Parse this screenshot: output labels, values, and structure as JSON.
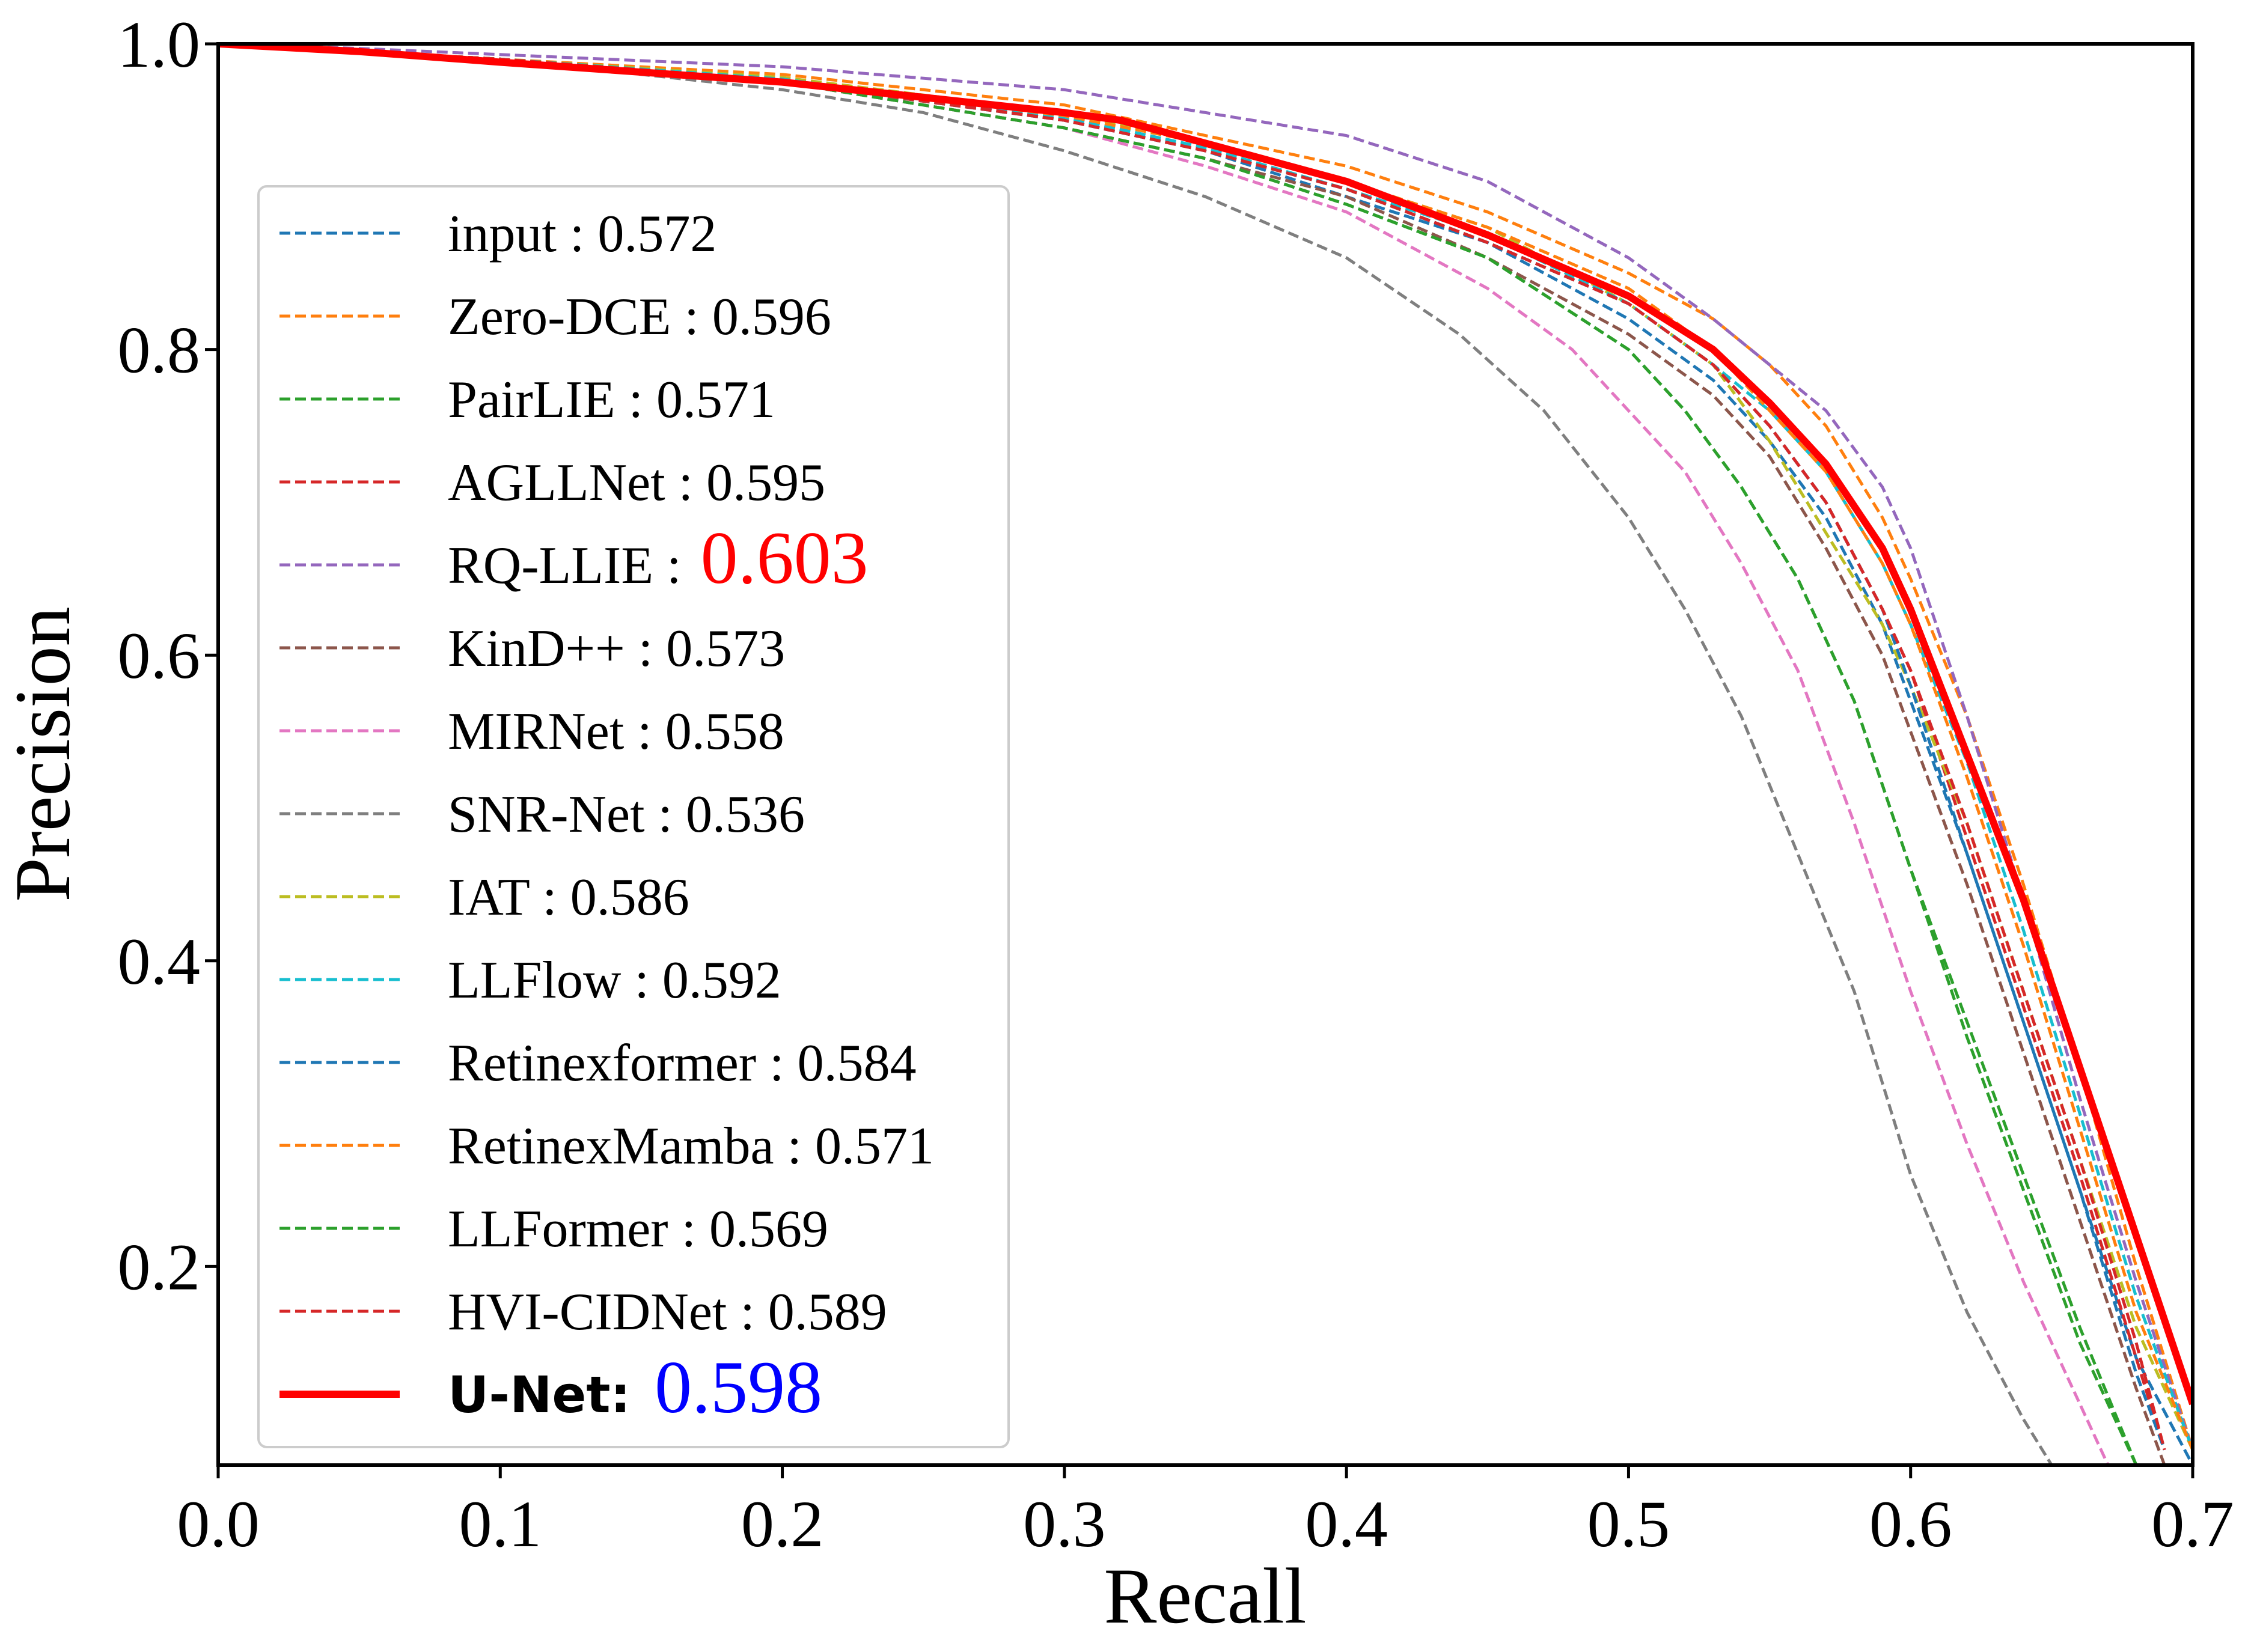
{
  "chart_data": {
    "type": "line",
    "title": "",
    "xlabel": "Recall",
    "ylabel": "Precision",
    "xlim": [
      0.0,
      0.7
    ],
    "ylim": [
      0.07,
      1.0
    ],
    "xticks": [
      "0.0",
      "0.1",
      "0.2",
      "0.3",
      "0.4",
      "0.5",
      "0.6",
      "0.7"
    ],
    "yticks": [
      "0.2",
      "0.4",
      "0.6",
      "0.8",
      "1.0"
    ],
    "grid": false,
    "legend_position": "center-left",
    "series": [
      {
        "name": "input",
        "score": "0.572",
        "color": "#1f77b4",
        "style": "dashed",
        "x": [
          0,
          0.05,
          0.1,
          0.2,
          0.3,
          0.35,
          0.4,
          0.45,
          0.5,
          0.53,
          0.55,
          0.57,
          0.59,
          0.6,
          0.62,
          0.64,
          0.66,
          0.68,
          0.7
        ],
        "y": [
          1.0,
          0.995,
          0.99,
          0.975,
          0.95,
          0.93,
          0.9,
          0.87,
          0.82,
          0.78,
          0.74,
          0.69,
          0.62,
          0.57,
          0.47,
          0.36,
          0.25,
          0.14,
          0.07
        ]
      },
      {
        "name": "Zero-DCE",
        "score": "0.596",
        "color": "#ff7f0e",
        "style": "dashed",
        "x": [
          0,
          0.05,
          0.1,
          0.2,
          0.3,
          0.35,
          0.4,
          0.45,
          0.5,
          0.53,
          0.55,
          0.57,
          0.59,
          0.6,
          0.62,
          0.64,
          0.66,
          0.68,
          0.7
        ],
        "y": [
          1.0,
          0.995,
          0.99,
          0.98,
          0.96,
          0.94,
          0.92,
          0.89,
          0.85,
          0.82,
          0.79,
          0.75,
          0.69,
          0.65,
          0.56,
          0.45,
          0.33,
          0.2,
          0.08
        ]
      },
      {
        "name": "PairLIE",
        "score": "0.571",
        "color": "#2ca02c",
        "style": "dashed",
        "x": [
          0,
          0.05,
          0.1,
          0.2,
          0.3,
          0.35,
          0.4,
          0.45,
          0.5,
          0.52,
          0.54,
          0.56,
          0.58,
          0.6,
          0.62,
          0.64,
          0.66,
          0.68
        ],
        "y": [
          1.0,
          0.995,
          0.99,
          0.975,
          0.945,
          0.925,
          0.895,
          0.86,
          0.8,
          0.76,
          0.71,
          0.65,
          0.57,
          0.46,
          0.35,
          0.25,
          0.15,
          0.07
        ]
      },
      {
        "name": "AGLLNet",
        "score": "0.595",
        "color": "#d62728",
        "style": "dashed",
        "x": [
          0,
          0.05,
          0.1,
          0.2,
          0.3,
          0.35,
          0.4,
          0.45,
          0.5,
          0.53,
          0.55,
          0.57,
          0.59,
          0.6,
          0.62,
          0.64,
          0.66,
          0.68,
          0.69
        ],
        "y": [
          1.0,
          0.995,
          0.99,
          0.975,
          0.95,
          0.93,
          0.905,
          0.87,
          0.83,
          0.79,
          0.75,
          0.7,
          0.63,
          0.59,
          0.48,
          0.37,
          0.26,
          0.14,
          0.08
        ]
      },
      {
        "name": "RQ-LLIE",
        "score": "0.603",
        "color": "#9467bd",
        "style": "dashed",
        "score_color": "#ff0000",
        "x": [
          0,
          0.05,
          0.1,
          0.2,
          0.3,
          0.35,
          0.4,
          0.45,
          0.5,
          0.53,
          0.55,
          0.57,
          0.59,
          0.6,
          0.62,
          0.64,
          0.66,
          0.68,
          0.7
        ],
        "y": [
          1.0,
          0.997,
          0.993,
          0.985,
          0.97,
          0.955,
          0.94,
          0.91,
          0.86,
          0.82,
          0.79,
          0.76,
          0.71,
          0.67,
          0.56,
          0.44,
          0.31,
          0.19,
          0.08
        ]
      },
      {
        "name": "KinD++",
        "score": "0.573",
        "color": "#8c564b",
        "style": "dashed",
        "x": [
          0,
          0.05,
          0.1,
          0.2,
          0.3,
          0.35,
          0.4,
          0.45,
          0.5,
          0.53,
          0.55,
          0.57,
          0.59,
          0.6,
          0.62,
          0.64,
          0.66,
          0.68,
          0.69
        ],
        "y": [
          1.0,
          0.995,
          0.99,
          0.975,
          0.945,
          0.925,
          0.9,
          0.86,
          0.81,
          0.77,
          0.73,
          0.67,
          0.6,
          0.55,
          0.45,
          0.34,
          0.23,
          0.12,
          0.07
        ]
      },
      {
        "name": "MIRNet",
        "score": "0.558",
        "color": "#e377c2",
        "style": "dashed",
        "x": [
          0,
          0.05,
          0.1,
          0.2,
          0.3,
          0.35,
          0.4,
          0.45,
          0.48,
          0.5,
          0.52,
          0.54,
          0.56,
          0.58,
          0.6,
          0.62,
          0.64,
          0.66,
          0.67
        ],
        "y": [
          1.0,
          0.995,
          0.99,
          0.975,
          0.945,
          0.92,
          0.89,
          0.84,
          0.8,
          0.76,
          0.72,
          0.66,
          0.59,
          0.49,
          0.38,
          0.28,
          0.19,
          0.11,
          0.07
        ]
      },
      {
        "name": "SNR-Net",
        "score": "0.536",
        "color": "#7f7f7f",
        "style": "dashed",
        "x": [
          0,
          0.05,
          0.1,
          0.2,
          0.25,
          0.3,
          0.35,
          0.4,
          0.44,
          0.47,
          0.5,
          0.52,
          0.54,
          0.56,
          0.58,
          0.6,
          0.62,
          0.64,
          0.65
        ],
        "y": [
          1.0,
          0.995,
          0.99,
          0.97,
          0.955,
          0.93,
          0.9,
          0.86,
          0.81,
          0.76,
          0.69,
          0.63,
          0.56,
          0.47,
          0.38,
          0.26,
          0.17,
          0.1,
          0.07
        ]
      },
      {
        "name": "IAT",
        "score": "0.586",
        "color": "#bcbd22",
        "style": "dashed",
        "x": [
          0,
          0.05,
          0.1,
          0.2,
          0.3,
          0.35,
          0.4,
          0.45,
          0.5,
          0.53,
          0.55,
          0.57,
          0.59,
          0.6,
          0.62,
          0.64,
          0.66,
          0.68,
          0.7
        ],
        "y": [
          1.0,
          0.995,
          0.99,
          0.978,
          0.955,
          0.935,
          0.91,
          0.88,
          0.83,
          0.79,
          0.74,
          0.68,
          0.62,
          0.58,
          0.49,
          0.38,
          0.27,
          0.16,
          0.08
        ]
      },
      {
        "name": "LLFlow",
        "score": "0.592",
        "color": "#17becf",
        "style": "dashed",
        "x": [
          0,
          0.05,
          0.1,
          0.2,
          0.3,
          0.35,
          0.4,
          0.45,
          0.5,
          0.53,
          0.55,
          0.57,
          0.59,
          0.6,
          0.62,
          0.64,
          0.66,
          0.68,
          0.7
        ],
        "y": [
          1.0,
          0.995,
          0.99,
          0.977,
          0.952,
          0.932,
          0.905,
          0.875,
          0.83,
          0.79,
          0.76,
          0.72,
          0.66,
          0.62,
          0.53,
          0.42,
          0.3,
          0.18,
          0.08
        ]
      },
      {
        "name": "Retinexformer",
        "score": "0.584",
        "color": "#1f77b4",
        "style": "dashed",
        "x": [
          0,
          0.05,
          0.1,
          0.2,
          0.3,
          0.35,
          0.4,
          0.45,
          0.5,
          0.53,
          0.55,
          0.57,
          0.59,
          0.6,
          0.62,
          0.64,
          0.66,
          0.68,
          0.69
        ],
        "y": [
          1.0,
          0.995,
          0.99,
          0.976,
          0.95,
          0.93,
          0.905,
          0.87,
          0.83,
          0.79,
          0.75,
          0.7,
          0.63,
          0.58,
          0.47,
          0.36,
          0.25,
          0.13,
          0.08
        ]
      },
      {
        "name": "RetinexMamba",
        "score": "0.571",
        "color": "#ff7f0e",
        "style": "dashed",
        "x": [
          0,
          0.05,
          0.1,
          0.2,
          0.3,
          0.35,
          0.4,
          0.45,
          0.5,
          0.53,
          0.55,
          0.57,
          0.59,
          0.6,
          0.62,
          0.64,
          0.66,
          0.68,
          0.7
        ],
        "y": [
          1.0,
          0.995,
          0.99,
          0.976,
          0.953,
          0.935,
          0.91,
          0.88,
          0.84,
          0.8,
          0.76,
          0.72,
          0.66,
          0.62,
          0.52,
          0.41,
          0.29,
          0.17,
          0.08
        ]
      },
      {
        "name": "LLFormer",
        "score": "0.569",
        "color": "#2ca02c",
        "style": "dashed",
        "x": [
          0,
          0.05,
          0.1,
          0.2,
          0.3,
          0.35,
          0.4,
          0.45,
          0.5,
          0.52,
          0.54,
          0.56,
          0.58,
          0.6,
          0.62,
          0.64,
          0.66,
          0.68
        ],
        "y": [
          1.0,
          0.995,
          0.99,
          0.975,
          0.945,
          0.925,
          0.895,
          0.86,
          0.8,
          0.76,
          0.71,
          0.65,
          0.57,
          0.46,
          0.36,
          0.26,
          0.16,
          0.07
        ]
      },
      {
        "name": "HVI-CIDNet",
        "score": "0.589",
        "color": "#d62728",
        "style": "dashed",
        "x": [
          0,
          0.05,
          0.1,
          0.2,
          0.3,
          0.35,
          0.4,
          0.45,
          0.5,
          0.53,
          0.55,
          0.57,
          0.59,
          0.6,
          0.62,
          0.64,
          0.66,
          0.68,
          0.69
        ],
        "y": [
          1.0,
          0.995,
          0.99,
          0.976,
          0.95,
          0.93,
          0.905,
          0.87,
          0.83,
          0.79,
          0.75,
          0.7,
          0.63,
          0.59,
          0.49,
          0.38,
          0.27,
          0.15,
          0.08
        ]
      },
      {
        "name": "U-Net",
        "score": "0.598",
        "color": "#ff0000",
        "style": "solid",
        "score_color": "#0000ff",
        "x": [
          0,
          0.05,
          0.1,
          0.2,
          0.25,
          0.3,
          0.32,
          0.35,
          0.4,
          0.45,
          0.5,
          0.53,
          0.55,
          0.57,
          0.59,
          0.6,
          0.62,
          0.64,
          0.66,
          0.68,
          0.7
        ],
        "y": [
          1.0,
          0.995,
          0.988,
          0.975,
          0.965,
          0.955,
          0.95,
          0.935,
          0.91,
          0.875,
          0.835,
          0.8,
          0.765,
          0.725,
          0.67,
          0.63,
          0.535,
          0.44,
          0.33,
          0.22,
          0.11
        ]
      }
    ]
  }
}
